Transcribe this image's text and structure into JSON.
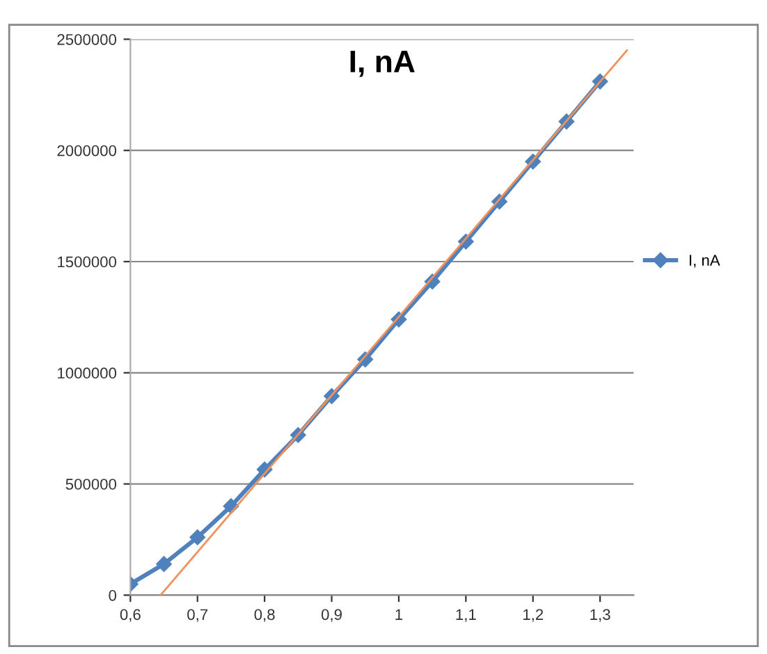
{
  "chart_data": {
    "type": "line",
    "title": "I, nA",
    "x": [
      0.6,
      0.65,
      0.7,
      0.75,
      0.8,
      0.85,
      0.9,
      0.95,
      1.0,
      1.05,
      1.1,
      1.15,
      1.2,
      1.25,
      1.3
    ],
    "series": [
      {
        "name": "I, nA",
        "color": "#4f81bd",
        "marker": "diamond",
        "values": [
          50000,
          140000,
          260000,
          400000,
          565000,
          720000,
          895000,
          1060000,
          1240000,
          1410000,
          1590000,
          1770000,
          1950000,
          2130000,
          2310000
        ]
      },
      {
        "type": "line",
        "color": "#f0905a",
        "marker": "none",
        "x": [
          0.645,
          1.34
        ],
        "values": [
          0,
          2450000
        ]
      }
    ],
    "xlim": [
      0.6,
      1.35
    ],
    "xticks": [
      {
        "value": 0.6,
        "label": "0,6"
      },
      {
        "value": 0.7,
        "label": "0,7"
      },
      {
        "value": 0.8,
        "label": "0,8"
      },
      {
        "value": 0.9,
        "label": "0,9"
      },
      {
        "value": 1.0,
        "label": "1"
      },
      {
        "value": 1.1,
        "label": "1,1"
      },
      {
        "value": 1.2,
        "label": "1,2"
      },
      {
        "value": 1.3,
        "label": "1,3"
      }
    ],
    "ylim": [
      0,
      2500000
    ],
    "yticks": [
      0,
      500000,
      1000000,
      1500000,
      2000000,
      2500000
    ],
    "grid": "y",
    "legend": "right"
  }
}
